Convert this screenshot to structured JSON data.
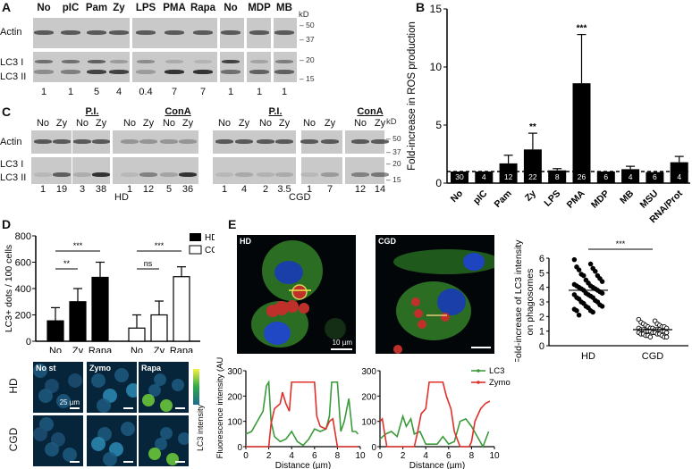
{
  "figure": {
    "panels": [
      "A",
      "B",
      "C",
      "D",
      "E"
    ]
  },
  "panelA": {
    "label": "A",
    "lanes": [
      "No",
      "pIC",
      "Pam",
      "Zy",
      "LPS",
      "PMA",
      "Rapa",
      "No",
      "MDP",
      "MB"
    ],
    "rows": [
      "Actin",
      "LC3 I",
      "LC3 II"
    ],
    "kd_label": "kD",
    "kd_markers": [
      "50",
      "37",
      "20",
      "15"
    ],
    "quantification": [
      "1",
      "1",
      "5",
      "4",
      "0.4",
      "7",
      "7",
      "1",
      "1",
      "1"
    ]
  },
  "panelC": {
    "label": "C",
    "groups": [
      {
        "name": "HD",
        "lanes": [
          "No",
          "Zy",
          "No",
          "Zy",
          "No",
          "Zy",
          "No",
          "Zy"
        ],
        "subgroups": [
          "P.I.",
          "ConA"
        ],
        "quantification": [
          "1",
          "19",
          "3",
          "38",
          "1",
          "12",
          "5",
          "36"
        ]
      },
      {
        "name": "CGD",
        "lanes": [
          "No",
          "Zy",
          "No",
          "Zy",
          "No",
          "Zy",
          "No",
          "Zy"
        ],
        "subgroups": [
          "P.I.",
          "ConA"
        ],
        "quantification": [
          "1",
          "4",
          "2",
          "3.5",
          "1",
          "7",
          "12",
          "14"
        ]
      }
    ],
    "rows": [
      "Actin",
      "LC3 I",
      "LC3 II"
    ],
    "kd_label": "kD",
    "kd_markers": [
      "50",
      "37",
      "20",
      "15"
    ],
    "pi_label": "P.I.",
    "cona_label": "ConA",
    "hd_label": "HD",
    "cgd_label": "CGD"
  },
  "panelD": {
    "label": "D",
    "legend": [
      "HD",
      "CGD"
    ],
    "sig": [
      "***",
      "**",
      "***",
      "ns"
    ],
    "micrograph_cols": [
      "No st",
      "Zymo",
      "Rapa"
    ],
    "micrograph_rows": [
      "HD",
      "CGD"
    ],
    "scale_label": "25 µm",
    "colorbar_label": "LC3 intensity"
  },
  "panelE": {
    "label": "E",
    "images": [
      "HD",
      "CGD"
    ],
    "scale_label": "10 µm",
    "legend": [
      "LC3",
      "Zymo"
    ],
    "colors": {
      "lc3": "#3a9a3a",
      "zymo": "#e0302a"
    },
    "xlabel": "Distance (µm)",
    "ylabel": "Fluorescence intensity (AU)",
    "scatter_sig": "***"
  },
  "chart_data": [
    {
      "id": "B",
      "type": "bar",
      "title": "",
      "xlabel": "",
      "ylabel": "Fold-increase in ROS production",
      "ylim": [
        0,
        15
      ],
      "yticks": [
        0,
        5,
        10,
        15
      ],
      "categories": [
        "No",
        "pIC",
        "Pam",
        "Zy",
        "LPS",
        "PMA",
        "MDP",
        "MB",
        "MSU",
        "RNA/Prot"
      ],
      "values": [
        1.0,
        1.0,
        1.7,
        2.9,
        1.1,
        8.6,
        1.0,
        1.2,
        0.95,
        1.8
      ],
      "errors": [
        0,
        0,
        0.7,
        1.4,
        0.15,
        4.2,
        0,
        0.25,
        0,
        0.5
      ],
      "n": [
        "30",
        "4",
        "12",
        "22",
        "8",
        "26",
        "6",
        "4",
        "6",
        "4"
      ],
      "significance": {
        "Zy": "**",
        "PMA": "***"
      },
      "reference_line": 1
    },
    {
      "id": "D",
      "type": "bar",
      "ylabel": "LC3+ dots / 100 cells",
      "ylim": [
        0,
        800
      ],
      "yticks": [
        0,
        200,
        400,
        600,
        800
      ],
      "categories": [
        "No",
        "Zy",
        "Rapa"
      ],
      "series": [
        {
          "name": "HD",
          "values": [
            155,
            300,
            485
          ],
          "errors": [
            100,
            100,
            115
          ]
        },
        {
          "name": "CGD",
          "values": [
            100,
            200,
            490
          ],
          "errors": [
            100,
            105,
            75
          ]
        }
      ],
      "comparisons": [
        {
          "series": "HD",
          "from": "No",
          "to": "Rapa",
          "label": "***"
        },
        {
          "series": "HD",
          "from": "No",
          "to": "Zy",
          "label": "**"
        },
        {
          "series": "CGD",
          "from": "No",
          "to": "Rapa",
          "label": "***"
        },
        {
          "series": "CGD",
          "from": "No",
          "to": "Zy",
          "label": "ns"
        }
      ]
    },
    {
      "id": "E-profile-HD",
      "type": "line",
      "xlabel": "Distance (µm)",
      "ylabel": "Fluorescence intensity (AU)",
      "xlim": [
        0,
        10
      ],
      "ylim": [
        0,
        300
      ],
      "xticks": [
        0,
        2,
        4,
        6,
        8,
        10
      ],
      "yticks": [
        0,
        100,
        200,
        300
      ],
      "series": [
        {
          "name": "LC3",
          "x": [
            0,
            0.5,
            1,
            1.5,
            1.8,
            2,
            2.2,
            2.5,
            3,
            3.5,
            4,
            4.5,
            5,
            5.5,
            6,
            6.5,
            7,
            7.3,
            7.5,
            7.8,
            8,
            8.3,
            8.6,
            9,
            9.3,
            9.6,
            9.8
          ],
          "y": [
            50,
            60,
            100,
            140,
            240,
            255,
            100,
            40,
            20,
            30,
            60,
            20,
            5,
            30,
            70,
            60,
            70,
            120,
            255,
            255,
            255,
            60,
            100,
            190,
            60,
            60,
            50
          ]
        },
        {
          "name": "Zymo",
          "x": [
            0,
            1,
            2,
            2.2,
            2.5,
            3,
            3.2,
            3.5,
            3.8,
            4,
            5,
            6,
            6.2,
            6.5,
            7,
            7.3,
            7.6,
            8,
            8.2,
            9,
            9.8
          ],
          "y": [
            0,
            0,
            0,
            90,
            150,
            170,
            215,
            170,
            140,
            255,
            255,
            255,
            120,
            80,
            70,
            100,
            110,
            0,
            0,
            0,
            0
          ]
        }
      ]
    },
    {
      "id": "E-profile-CGD",
      "type": "line",
      "xlabel": "Distance (µm)",
      "xlim": [
        0,
        10
      ],
      "ylim": [
        0,
        300
      ],
      "xticks": [
        0,
        2,
        4,
        6,
        8,
        10
      ],
      "yticks": [
        0,
        100,
        200,
        300
      ],
      "series": [
        {
          "name": "LC3",
          "x": [
            0,
            0.5,
            1,
            1.5,
            2,
            2.3,
            2.7,
            3,
            3.5,
            4,
            4.5,
            5,
            5.5,
            6,
            6.5,
            7,
            7.5,
            8,
            8.5,
            9,
            9.5
          ],
          "y": [
            30,
            50,
            60,
            40,
            120,
            80,
            110,
            50,
            60,
            10,
            10,
            10,
            40,
            10,
            20,
            100,
            110,
            80,
            40,
            0,
            60
          ]
        },
        {
          "name": "Zymo",
          "x": [
            0,
            0.2,
            0.6,
            1,
            2,
            3,
            3.3,
            3.6,
            4,
            4.3,
            4.5,
            5,
            5.5,
            5.8,
            6.2,
            6.5,
            7,
            7.8,
            8,
            8.3,
            8.8,
            9.2,
            9.6
          ],
          "y": [
            100,
            110,
            0,
            0,
            0,
            0,
            60,
            130,
            150,
            255,
            255,
            255,
            255,
            200,
            150,
            60,
            0,
            0,
            20,
            100,
            150,
            170,
            180
          ]
        }
      ]
    },
    {
      "id": "E-scatter",
      "type": "scatter",
      "ylabel": "Fold-increase of LC3 intensity on phagosomes",
      "ylim": [
        0,
        6
      ],
      "yticks": [
        0,
        1,
        2,
        3,
        4,
        5,
        6
      ],
      "categories": [
        "HD",
        "CGD"
      ],
      "means": [
        3.8,
        1.1
      ],
      "significance": "***",
      "series": [
        {
          "name": "HD",
          "filled": true,
          "values": [
            5.9,
            5.6,
            5.4,
            5.3,
            5.2,
            5.1,
            4.9,
            4.8,
            4.8,
            4.6,
            4.5,
            4.4,
            4.3,
            4.2,
            4.1,
            4.1,
            4.0,
            4.0,
            3.9,
            3.9,
            3.8,
            3.8,
            3.7,
            3.6,
            3.6,
            3.5,
            3.5,
            3.4,
            3.3,
            3.3,
            3.2,
            3.1,
            3.0,
            3.0,
            2.9,
            2.8,
            2.7,
            2.7,
            2.6,
            2.5,
            2.4,
            2.4,
            2.3,
            2.1
          ]
        },
        {
          "name": "CGD",
          "filled": false,
          "values": [
            1.8,
            1.7,
            1.6,
            1.5,
            1.5,
            1.4,
            1.4,
            1.3,
            1.3,
            1.3,
            1.2,
            1.2,
            1.2,
            1.2,
            1.1,
            1.1,
            1.1,
            1.1,
            1.1,
            1.0,
            1.0,
            1.0,
            1.0,
            1.0,
            0.9,
            0.9,
            0.9,
            0.9,
            0.8,
            0.8,
            0.8,
            0.8,
            0.7,
            0.7,
            0.7,
            0.6,
            0.6,
            0.6
          ]
        }
      ]
    }
  ]
}
